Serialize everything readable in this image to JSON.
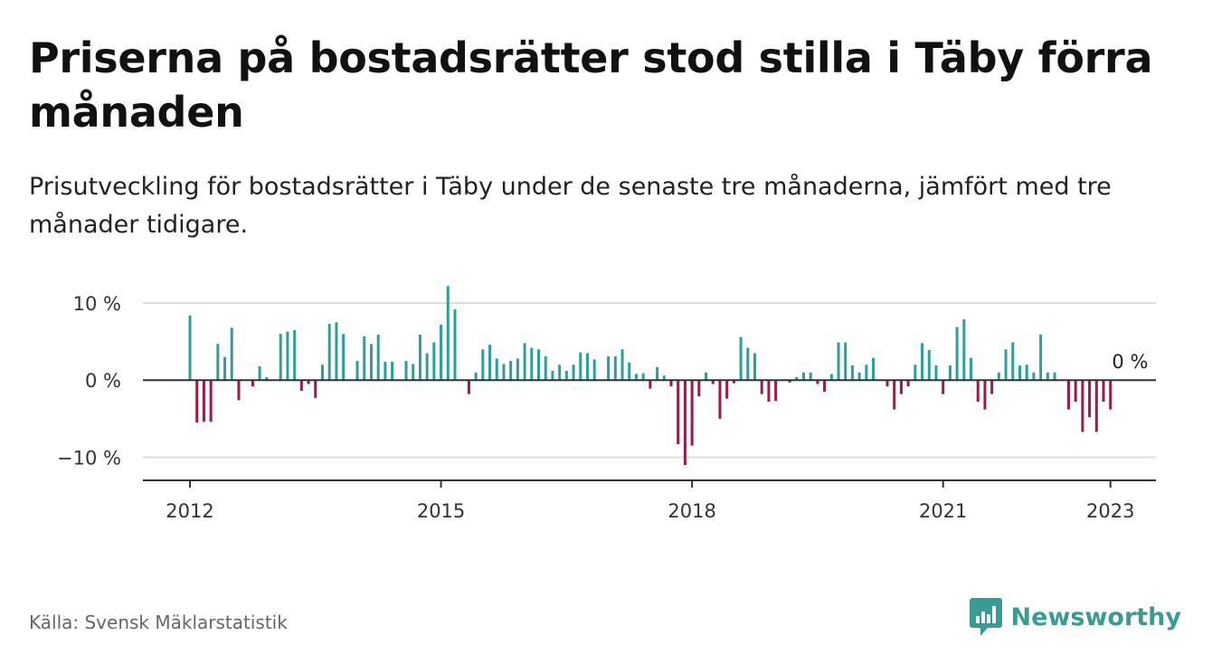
{
  "title": "Priserna på bostadsrätter stod stilla i Täby förra månaden",
  "subtitle": "Prisutveckling för bostadsrätter i Täby under de senaste tre månaderna, jämfört med tre månader tidigare.",
  "source": "Källa: Svensk Mäklarstatistik",
  "brand": {
    "name": "Newsworthy",
    "logo_icon": "newsworthy-logo-icon"
  },
  "colors": {
    "positive": "#2aa198",
    "negative": "#9b1b46",
    "grid": "#dddddd",
    "zero_line": "#333333"
  },
  "chart_data": {
    "type": "bar",
    "x_start": "2012-01",
    "x_end": "2022-12",
    "ylim": [
      -13,
      12
    ],
    "y_ticks": [
      {
        "value": 10,
        "label": "10 %"
      },
      {
        "value": 0,
        "label": "0 %"
      },
      {
        "value": -10,
        "label": "−10 %"
      }
    ],
    "x_ticks": [
      {
        "date": "2012-01",
        "label": "2012"
      },
      {
        "date": "2015-01",
        "label": "2015"
      },
      {
        "date": "2018-01",
        "label": "2018"
      },
      {
        "date": "2021-01",
        "label": "2021"
      },
      {
        "date": "2023-01",
        "label": "2023"
      }
    ],
    "last_value_label": "0 %",
    "series": [
      {
        "values": [
          8.4,
          -5.5,
          -5.4,
          -5.4,
          4.7,
          3,
          6.8,
          -2.6,
          0,
          -0.8,
          1.8,
          0.4,
          0,
          6,
          6.3,
          6.5,
          -1.4,
          -0.5,
          -2.3,
          2,
          7.3,
          7.5,
          6,
          0,
          2.5,
          5.7,
          4.7,
          5.9,
          2.4,
          2.4,
          0,
          2.5,
          2.1,
          5.9,
          3.5,
          4.9,
          7.2,
          12.2,
          9.2,
          0,
          -1.8,
          1,
          4,
          4.6,
          2.8,
          2.1,
          2.5,
          2.8,
          4.8,
          4.2,
          4,
          3.1,
          1.2,
          2,
          1.2,
          2,
          3.6,
          3.5,
          2.7,
          0,
          3.1,
          3.1,
          4,
          2.3,
          0.8,
          0.9,
          -1.1,
          1.7,
          0.6,
          -0.8,
          -8.3,
          -11,
          -8.5,
          -2.1,
          1,
          -0.5,
          -5,
          -2.4,
          -0.4,
          5.6,
          4.2,
          3.5,
          -1.8,
          -2.8,
          -2.7,
          0,
          -0.3,
          0.4,
          1,
          1,
          -0.5,
          -1.5,
          0.8,
          4.9,
          4.9,
          1.9,
          1,
          2,
          2.9,
          0,
          -0.8,
          -3.8,
          -1.8,
          -0.8,
          2,
          4.8,
          3.9,
          1.9,
          -1.8,
          1.9,
          6.9,
          7.9,
          2.9,
          -2.8,
          -3.8,
          -1.8,
          1,
          4,
          4.9,
          1.9,
          2,
          1,
          5.9,
          1,
          1,
          0,
          -3.8,
          -2.8,
          -6.7,
          -4.8,
          -6.7,
          -2.8,
          -3.8,
          0
        ]
      }
    ]
  }
}
